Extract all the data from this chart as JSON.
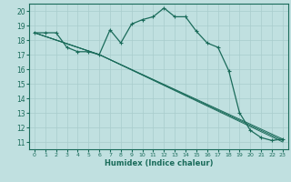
{
  "xlabel": "Humidex (Indice chaleur)",
  "bg_color": "#c0e0e0",
  "grid_color": "#a8cccc",
  "line_color": "#1a6b5a",
  "xlim": [
    -0.5,
    23.5
  ],
  "ylim": [
    10.5,
    20.5
  ],
  "yticks": [
    11,
    12,
    13,
    14,
    15,
    16,
    17,
    18,
    19,
    20
  ],
  "xticks": [
    0,
    1,
    2,
    3,
    4,
    5,
    6,
    7,
    8,
    9,
    10,
    11,
    12,
    13,
    14,
    15,
    16,
    17,
    18,
    19,
    20,
    21,
    22,
    23
  ],
  "main_x": [
    0,
    1,
    2,
    3,
    4,
    5,
    6,
    7,
    8,
    9,
    10,
    11,
    12,
    13,
    14,
    15,
    16,
    17,
    18,
    19,
    20,
    21,
    22,
    23
  ],
  "main_y": [
    18.5,
    18.5,
    18.5,
    17.5,
    17.2,
    17.2,
    17.0,
    18.7,
    17.8,
    19.1,
    19.4,
    19.6,
    20.2,
    19.6,
    19.6,
    18.6,
    17.8,
    17.5,
    15.9,
    13.0,
    11.8,
    11.3,
    11.1,
    11.2
  ],
  "line2_x": [
    0,
    6,
    23
  ],
  "line2_y": [
    18.5,
    17.0,
    11.2
  ],
  "line3_x": [
    0,
    6,
    23
  ],
  "line3_y": [
    18.5,
    17.0,
    11.1
  ],
  "line4_x": [
    0,
    6,
    23
  ],
  "line4_y": [
    18.5,
    17.0,
    11.0
  ]
}
